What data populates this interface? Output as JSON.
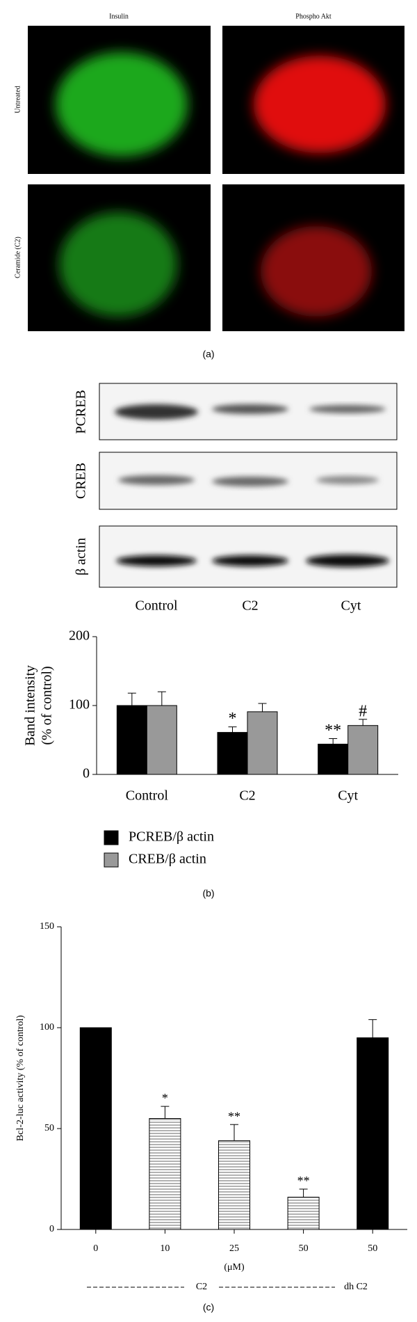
{
  "panel_a": {
    "columns": [
      "Insulin",
      "Phospho Akt"
    ],
    "rows": [
      "Untreated",
      "Ceramide (C2)"
    ],
    "caption": "(a)"
  },
  "blots": {
    "rows": [
      "PCREB",
      "CREB",
      "β actin"
    ],
    "lanes": [
      "Control",
      "C2",
      "Cyt"
    ]
  },
  "chart_data": [
    {
      "type": "bar",
      "ylabel": [
        "Band intensity",
        "(% of control)"
      ],
      "categories": [
        "Control",
        "C2",
        "Cyt"
      ],
      "series": [
        {
          "name": "PCREB/β actin",
          "color": "#000000",
          "values": [
            100,
            61,
            44
          ],
          "errors": [
            18,
            8,
            8
          ],
          "annotations": [
            null,
            "*",
            "**"
          ]
        },
        {
          "name": "CREB/β actin",
          "color": "#999999",
          "values": [
            100,
            91,
            71
          ],
          "errors": [
            20,
            12,
            9
          ],
          "annotations": [
            null,
            null,
            "#"
          ]
        }
      ],
      "ylim": [
        0,
        200
      ],
      "yticks": [
        0,
        100,
        200
      ],
      "caption": "(b)"
    },
    {
      "type": "bar",
      "ylabel": "Bcl-2-luc activity (% of control)",
      "xlabel": "(μM)",
      "categories": [
        "0",
        "10",
        "25",
        "50",
        "50"
      ],
      "series": [
        {
          "color": "#000000",
          "fills": [
            "solid",
            "hatched",
            "hatched",
            "hatched",
            "solid"
          ],
          "values": [
            100,
            55,
            44,
            16,
            95
          ],
          "errors": [
            0,
            6,
            8,
            4,
            9
          ],
          "annotations": [
            null,
            "*",
            "**",
            "**",
            null
          ]
        }
      ],
      "groups": [
        "C2",
        "dh C2"
      ],
      "ylim": [
        0,
        150
      ],
      "yticks": [
        0,
        50,
        100,
        150
      ],
      "caption": "(c)"
    }
  ]
}
